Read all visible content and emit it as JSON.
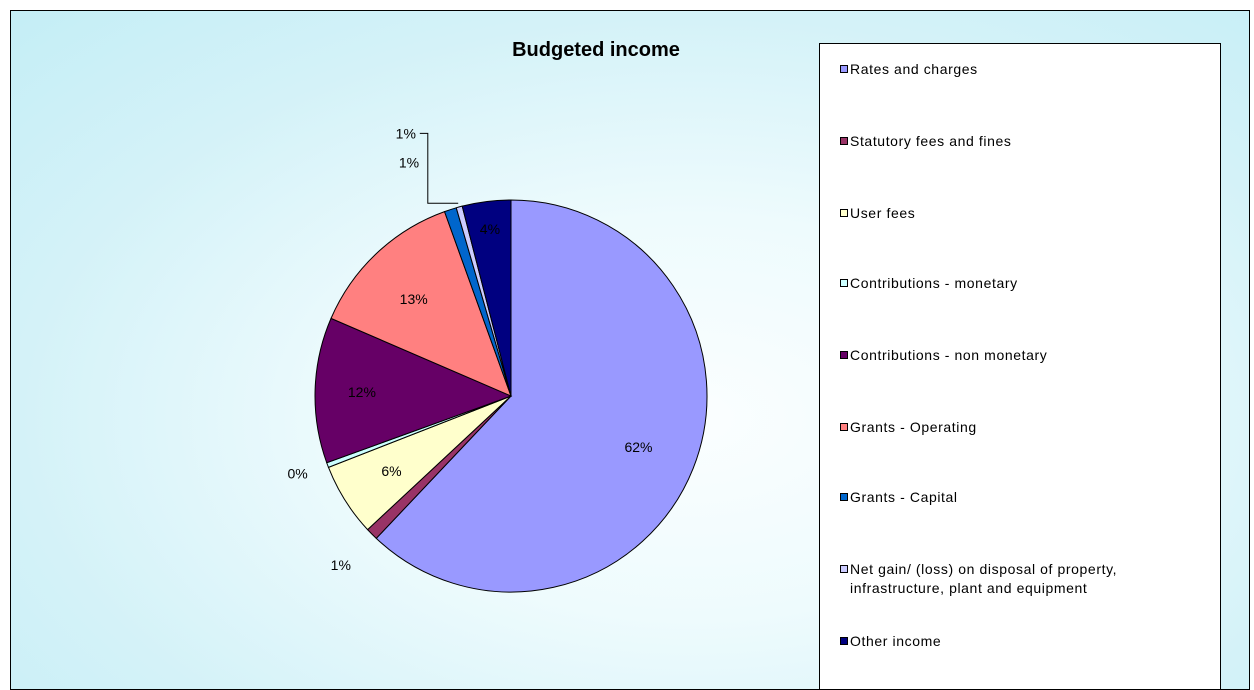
{
  "chart_data": {
    "type": "pie",
    "title": "Budgeted income",
    "legend_position": "right",
    "slices": [
      {
        "name": "Rates and charges",
        "value": 62,
        "label": "62%",
        "color": "#9999ff"
      },
      {
        "name": "Statutory fees and fines",
        "value": 1,
        "label": "1%",
        "color": "#993366"
      },
      {
        "name": "User fees",
        "value": 6,
        "label": "6%",
        "color": "#ffffcc"
      },
      {
        "name": "Contributions - monetary",
        "value": 0.4,
        "label": "0%",
        "color": "#ccffff"
      },
      {
        "name": "Contributions - non monetary",
        "value": 12,
        "label": "12%",
        "color": "#660066"
      },
      {
        "name": "Grants - Operating",
        "value": 13,
        "label": "13%",
        "color": "#ff8080"
      },
      {
        "name": "Grants - Capital",
        "value": 1,
        "label": "1%",
        "color": "#0066cc"
      },
      {
        "name": "Net gain/ (loss) on disposal of property,\ninfrastructure, plant and equipment",
        "value": 0.5,
        "label": "1%",
        "color": "#ccccff"
      },
      {
        "name": "Other income",
        "value": 4,
        "label": "4%",
        "color": "#000080"
      }
    ]
  }
}
